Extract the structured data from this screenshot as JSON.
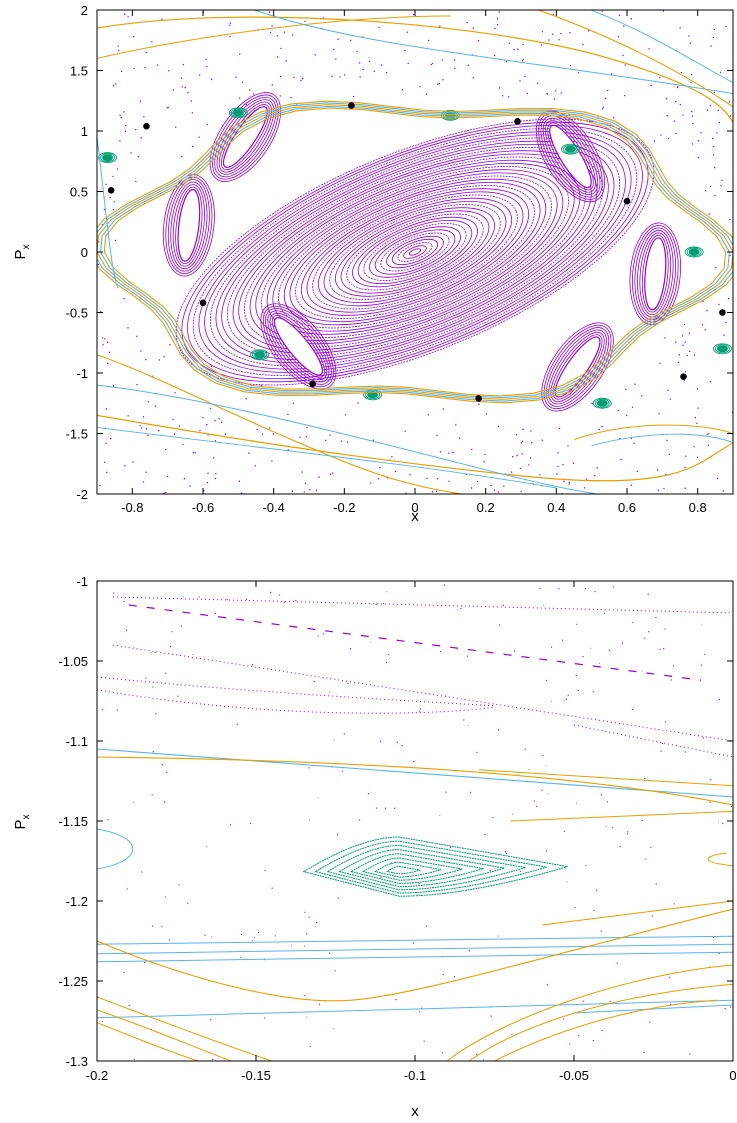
{
  "colors": {
    "purple": "#9400d3",
    "blue": "#56b4e9",
    "orange": "#e69f00",
    "green": "#009e73",
    "black": "#000000"
  },
  "chart_data": [
    {
      "type": "scatter",
      "xlabel": "x",
      "ylabel_main": "P",
      "ylabel_sub": "x",
      "xlim": [
        -0.9,
        0.9
      ],
      "ylim": [
        -2,
        2
      ],
      "xticks": [
        -0.8,
        -0.6,
        -0.4,
        -0.2,
        0,
        0.2,
        0.4,
        0.6,
        0.8
      ],
      "xtick_labels": [
        "-0.8",
        "-0.6",
        "-0.4",
        "-0.2",
        "0",
        "0.2",
        "0.4",
        "0.6",
        "0.8"
      ],
      "yticks": [
        2,
        1.5,
        1,
        0.5,
        0,
        -0.5,
        -1,
        -1.5,
        -2
      ],
      "ytick_labels": [
        "2",
        "1.5",
        "1",
        "0.5",
        "0",
        "-0.5",
        "-1",
        "-1.5",
        "-2"
      ],
      "grid": false,
      "central_island": {
        "center": [
          0,
          0
        ],
        "rx": 0.72,
        "ry": 1.06,
        "tilt_deg": 22
      },
      "island_chain": [
        {
          "x": -0.48,
          "y": 0.95
        },
        {
          "x": 0.44,
          "y": 0.79
        },
        {
          "x": 0.68,
          "y": -0.18
        },
        {
          "x": 0.46,
          "y": -0.95
        },
        {
          "x": -0.33,
          "y": -0.78
        },
        {
          "x": -0.64,
          "y": 0.22
        }
      ],
      "green_islands": [
        {
          "x": -0.87,
          "y": 0.78
        },
        {
          "x": -0.5,
          "y": 1.15
        },
        {
          "x": 0.1,
          "y": 1.13
        },
        {
          "x": 0.44,
          "y": 0.85
        },
        {
          "x": 0.79,
          "y": 0.0
        },
        {
          "x": 0.87,
          "y": -0.8
        },
        {
          "x": -0.44,
          "y": -0.85
        },
        {
          "x": -0.12,
          "y": -1.18
        },
        {
          "x": 0.53,
          "y": -1.25
        }
      ],
      "hyperbolic_points": [
        {
          "x": -0.76,
          "y": 1.04
        },
        {
          "x": -0.18,
          "y": 1.21
        },
        {
          "x": 0.29,
          "y": 1.08
        },
        {
          "x": 0.6,
          "y": 0.42
        },
        {
          "x": 0.87,
          "y": -0.5
        },
        {
          "x": 0.76,
          "y": -1.03
        },
        {
          "x": 0.18,
          "y": -1.21
        },
        {
          "x": -0.29,
          "y": -1.09
        },
        {
          "x": -0.6,
          "y": -0.42
        },
        {
          "x": -0.86,
          "y": 0.51
        }
      ]
    },
    {
      "type": "scatter",
      "xlabel": "x",
      "ylabel_main": "P",
      "ylabel_sub": "x",
      "xlim": [
        -0.2,
        0
      ],
      "ylim": [
        -1.3,
        -1
      ],
      "xticks": [
        -0.2,
        -0.15,
        -0.1,
        -0.05,
        0
      ],
      "xtick_labels": [
        "-0.2",
        "-0.15",
        "-0.1",
        "-0.05",
        "0"
      ],
      "yticks": [
        -1,
        -1.05,
        -1.1,
        -1.15,
        -1.2,
        -1.25,
        -1.3
      ],
      "ytick_labels": [
        "-1",
        "-1.05",
        "-1.1",
        "-1.15",
        "-1.2",
        "-1.25",
        "-1.3"
      ],
      "grid": false,
      "green_island": {
        "center": [
          -0.105,
          -1.181
        ],
        "x_extent": [
          -0.135,
          -0.052
        ],
        "y_extent": [
          -1.197,
          -1.16
        ]
      }
    }
  ]
}
